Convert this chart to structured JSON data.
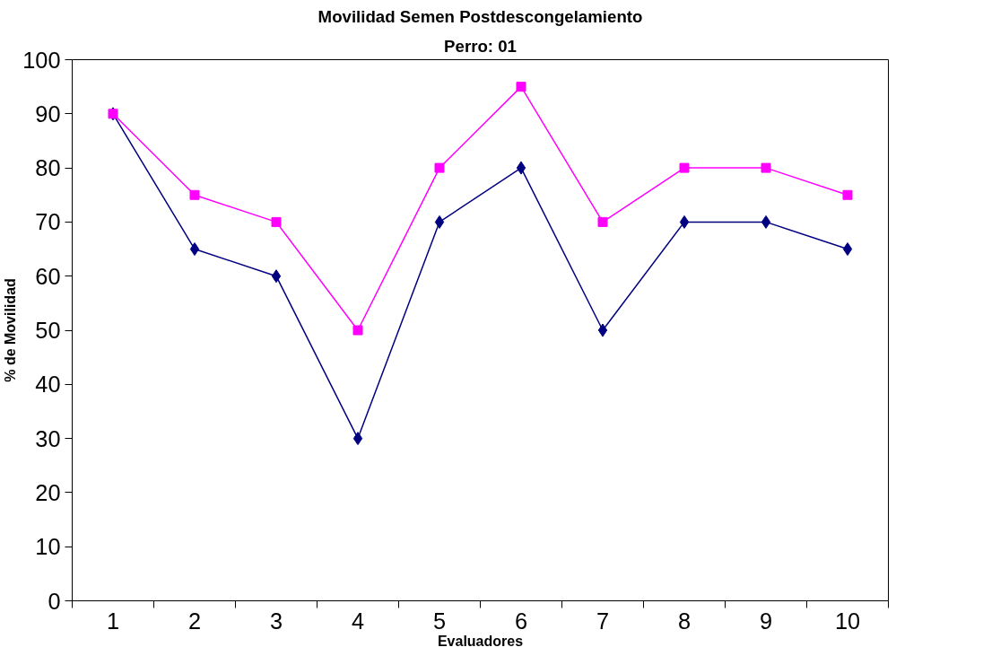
{
  "chart_data": {
    "type": "line",
    "title": "Movilidad Semen Postdescongelamiento",
    "subtitle": "Perro: 01",
    "xlabel": "Evaluadores",
    "ylabel": "% de Movilidad",
    "categories": [
      "1",
      "2",
      "3",
      "4",
      "5",
      "6",
      "7",
      "8",
      "9",
      "10"
    ],
    "series": [
      {
        "color": "#000080",
        "marker": "diamond",
        "values": [
          90,
          65,
          60,
          30,
          70,
          80,
          50,
          70,
          70,
          65
        ]
      },
      {
        "color": "#ff00ff",
        "marker": "square",
        "values": [
          90,
          75,
          70,
          50,
          80,
          95,
          70,
          80,
          80,
          75
        ]
      }
    ],
    "ylim": [
      0,
      100
    ],
    "yticks": [
      0,
      10,
      20,
      30,
      40,
      50,
      60,
      70,
      80,
      90,
      100
    ],
    "grid": false,
    "line_style": "solid"
  }
}
